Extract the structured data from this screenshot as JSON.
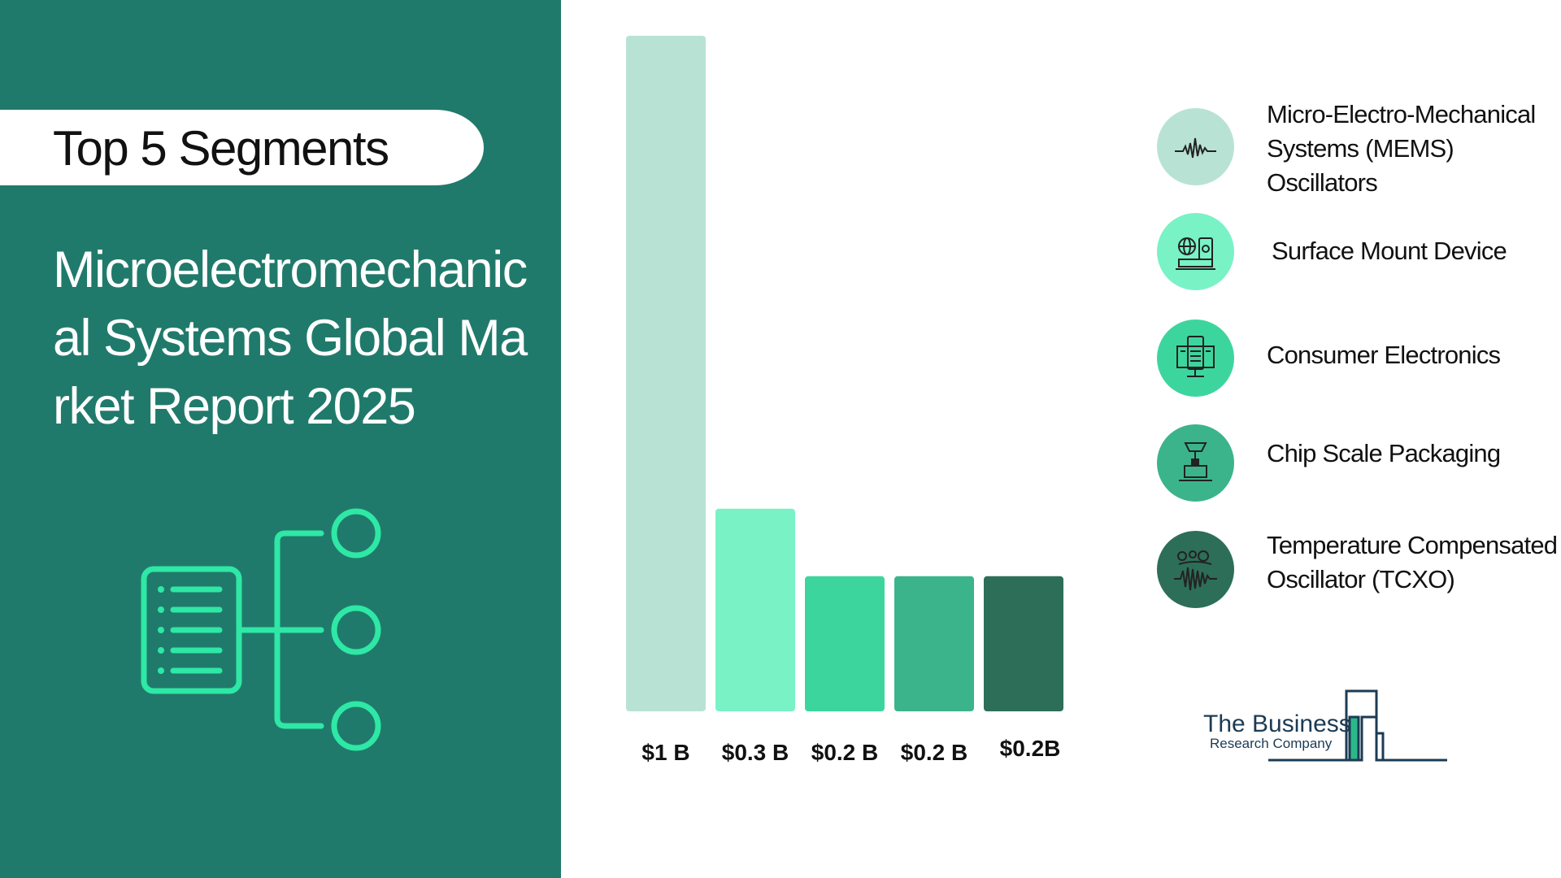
{
  "badge": {
    "label": "Top 5 Segments"
  },
  "report": {
    "title": "Microelectromechanical Systems Global Market Report 2025"
  },
  "colors": {
    "panel": "#207a6b",
    "accent": "#2ee8a5",
    "bars": [
      "#b8e3d4",
      "#79f2c6",
      "#3dd59e",
      "#3bb48b",
      "#2d6e58"
    ]
  },
  "chart_data": {
    "type": "bar",
    "categories": [
      "Micro-Electro-Mechanical Systems (MEMS) Oscillators",
      "Surface Mount Device",
      "Consumer Electronics",
      "Chip Scale Packaging",
      "Temperature Compensated Oscillator (TCXO)"
    ],
    "values": [
      1.0,
      0.3,
      0.2,
      0.2,
      0.2
    ],
    "data_labels": [
      "$1 B",
      "$0.3 B",
      "$0.2 B",
      "$0.2 B",
      "$0.2B"
    ],
    "ylim": [
      0,
      1.0
    ],
    "grid": false,
    "legend": "right"
  },
  "legend_items": [
    {
      "label": "Micro-Electro-Mechanical Systems (MEMS) Oscillators",
      "icon": "waveform-icon"
    },
    {
      "label": "Surface Mount Device",
      "icon": "device-gear-icon"
    },
    {
      "label": "Consumer Electronics",
      "icon": "tablet-monitor-icon"
    },
    {
      "label": "Chip Scale Packaging",
      "icon": "chip-machine-icon"
    },
    {
      "label": "Temperature Compensated Oscillator (TCXO)",
      "icon": "temperature-oscillator-icon"
    }
  ],
  "logo": {
    "line1": "The Business",
    "line2": "Research Company"
  }
}
